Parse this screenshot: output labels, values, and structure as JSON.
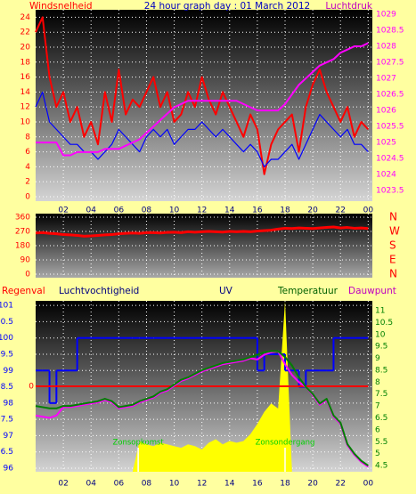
{
  "chart_data": [
    {
      "type": "line",
      "title": "24 hour graph day : 01 March 2012",
      "x": [
        0,
        0.5,
        1,
        1.5,
        2,
        2.5,
        3,
        3.5,
        4,
        4.5,
        5,
        5.5,
        6,
        6.5,
        7,
        7.5,
        8,
        8.5,
        9,
        9.5,
        10,
        10.5,
        11,
        11.5,
        12,
        12.5,
        13,
        13.5,
        14,
        14.5,
        15,
        15.5,
        16,
        16.5,
        17,
        17.5,
        18,
        18.5,
        19,
        19.5,
        20,
        20.5,
        21,
        21.5,
        22,
        22.5,
        23,
        23.5,
        24
      ],
      "xlim": [
        0,
        24.3
      ],
      "xticks": [
        {
          "value": 2,
          "label": "02"
        },
        {
          "value": 4,
          "label": "04"
        },
        {
          "value": 6,
          "label": "06"
        },
        {
          "value": 8,
          "label": "08"
        },
        10,
        12,
        14,
        16,
        18,
        20,
        22,
        {
          "value": 24,
          "label": "00"
        }
      ],
      "ylim": [
        -0.6,
        25
      ],
      "yticks": [
        0,
        2,
        4,
        6,
        8,
        10,
        12,
        14,
        16,
        18,
        20,
        22,
        24
      ],
      "y2lim": [
        1023.17,
        1029.14
      ],
      "y2ticks": [
        1023.5,
        1024,
        1024.5,
        1025,
        1025.5,
        1026,
        1026.5,
        1027,
        1027.5,
        1028,
        1028.5,
        1029
      ],
      "grid": true,
      "series": [
        {
          "name": "Windsnelheid",
          "color": "#ff0000",
          "values": [
            22,
            24,
            16,
            12,
            14,
            10,
            12,
            8,
            10,
            7,
            14,
            10,
            17,
            11,
            13,
            12,
            14,
            16,
            12,
            14,
            10,
            11,
            14,
            12,
            16,
            13,
            11,
            14,
            12,
            10,
            8,
            11,
            9,
            3,
            7,
            9,
            10,
            11,
            6,
            12,
            15,
            17,
            14,
            12,
            10,
            12,
            8,
            10,
            9
          ]
        },
        {
          "color": "#0000ff",
          "values": [
            12,
            14,
            10,
            9,
            8,
            7,
            7,
            6,
            6,
            5,
            6,
            7,
            9,
            8,
            7,
            6,
            8,
            9,
            8,
            9,
            7,
            8,
            9,
            9,
            10,
            9,
            8,
            9,
            8,
            7,
            6,
            7,
            6,
            4,
            5,
            5,
            6,
            7,
            5,
            7,
            9,
            11,
            10,
            9,
            8,
            9,
            7,
            7,
            6
          ]
        },
        {
          "name": "Luchtdruk",
          "color": "#ff00ff",
          "axis": "y2",
          "values": [
            1025,
            1025,
            1025,
            1025,
            1024.6,
            1024.6,
            1024.7,
            1024.7,
            1024.7,
            1024.7,
            1024.8,
            1024.8,
            1024.8,
            1024.9,
            1025,
            1025.1,
            1025.3,
            1025.5,
            1025.7,
            1025.9,
            1026.1,
            1026.2,
            1026.3,
            1026.3,
            1026.3,
            1026.3,
            1026.3,
            1026.3,
            1026.3,
            1026.3,
            1026.2,
            1026.1,
            1026,
            1026,
            1026,
            1026,
            1026.2,
            1026.5,
            1026.8,
            1027,
            1027.2,
            1027.4,
            1027.5,
            1027.6,
            1027.8,
            1027.9,
            1028,
            1028,
            1028.1
          ]
        }
      ]
    },
    {
      "type": "line",
      "x": [
        0,
        0.5,
        1,
        1.5,
        2,
        2.5,
        3,
        3.5,
        4,
        4.5,
        5,
        5.5,
        6,
        6.5,
        7,
        7.5,
        8,
        8.5,
        9,
        9.5,
        10,
        10.5,
        11,
        11.5,
        12,
        12.5,
        13,
        13.5,
        14,
        14.5,
        15,
        15.5,
        16,
        16.5,
        17,
        17.5,
        18,
        18.5,
        19,
        19.5,
        20,
        20.5,
        21,
        21.5,
        22,
        22.5,
        23,
        23.5,
        24
      ],
      "xlim": [
        0,
        24.3
      ],
      "xticks": [
        2,
        4,
        6,
        8,
        10,
        12,
        14,
        16,
        18,
        20,
        22,
        24
      ],
      "ylim": [
        -22.5,
        382.5
      ],
      "yticks": [
        0,
        90,
        180,
        270,
        360
      ],
      "y2lim": [
        -22.5,
        382.5
      ],
      "y2ticks": [
        {
          "value": 360,
          "label": "N"
        },
        {
          "value": 270,
          "label": "W"
        },
        {
          "value": 180,
          "label": "S"
        },
        {
          "value": 90,
          "label": "E"
        },
        {
          "value": 0,
          "label": "N"
        }
      ],
      "grid": true,
      "series": [
        {
          "color": "#ff0000",
          "values": [
            260,
            262,
            258,
            255,
            250,
            248,
            245,
            240,
            242,
            245,
            248,
            250,
            255,
            258,
            260,
            258,
            262,
            262,
            260,
            264,
            265,
            262,
            268,
            265,
            268,
            270,
            268,
            266,
            270,
            268,
            270,
            268,
            272,
            275,
            278,
            285,
            290,
            288,
            292,
            290,
            288,
            292,
            295,
            298,
            292,
            295,
            290,
            292,
            288
          ]
        }
      ]
    },
    {
      "type": "line",
      "x": [
        0,
        0.5,
        1,
        1.5,
        2,
        2.5,
        3,
        3.5,
        4,
        4.5,
        5,
        5.5,
        6,
        6.5,
        7,
        7.5,
        8,
        8.5,
        9,
        9.5,
        10,
        10.5,
        11,
        11.5,
        12,
        12.5,
        13,
        13.5,
        14,
        14.5,
        15,
        15.5,
        16,
        16.5,
        17,
        17.5,
        18,
        18.5,
        19,
        19.5,
        20,
        20.5,
        21,
        21.5,
        22,
        22.5,
        23,
        23.5,
        24
      ],
      "xlim": [
        0,
        24.3
      ],
      "xticks": [
        {
          "value": 2,
          "label": "02"
        },
        {
          "value": 4,
          "label": "04"
        },
        {
          "value": 6,
          "label": "06"
        },
        {
          "value": 8,
          "label": "08"
        },
        10,
        12,
        14,
        16,
        18,
        20,
        22,
        {
          "value": 24,
          "label": "00"
        }
      ],
      "ylim": [
        95.89,
        101.14
      ],
      "yticks": [
        96,
        96.5,
        97,
        97.5,
        98,
        98.5,
        99,
        99.5,
        100,
        100.5,
        101
      ],
      "y2lim": [
        4.24,
        11.41
      ],
      "y2ticks": [
        4.5,
        5,
        5.5,
        6,
        6.5,
        7,
        7.5,
        8,
        8.5,
        9,
        9.5,
        10,
        10.5,
        11
      ],
      "y3lim": [
        -1,
        1
      ],
      "y3ticks": [
        0
      ],
      "y4lim": [
        0,
        10
      ],
      "grid": true,
      "series": [
        {
          "name": "UV",
          "type": "area",
          "color": "#ffff00",
          "axis": "y4",
          "values": [
            0,
            0,
            0,
            0,
            0,
            0,
            0,
            0,
            0,
            0,
            0,
            0,
            0,
            0,
            0,
            1.8,
            1.6,
            1.5,
            1.7,
            1.6,
            1.5,
            1.4,
            1.6,
            1.5,
            1.3,
            1.7,
            1.9,
            1.6,
            1.8,
            1.7,
            1.8,
            2.2,
            2.8,
            3.5,
            4,
            3.7,
            10,
            0,
            0,
            0,
            0,
            0,
            0,
            0,
            0,
            0,
            0,
            0,
            0
          ]
        },
        {
          "name": "Luchtvochtigheid",
          "type": "step",
          "color": "#0000ff",
          "values": [
            99,
            99,
            98,
            99,
            99,
            99,
            100,
            100,
            100,
            100,
            100,
            100,
            100,
            100,
            100,
            100,
            100,
            100,
            100,
            100,
            100,
            100,
            100,
            100,
            100,
            100,
            100,
            100,
            100,
            100,
            100,
            100,
            99,
            99.5,
            99.5,
            99.5,
            99,
            99,
            98.5,
            99,
            99,
            99,
            99,
            100,
            100,
            100,
            100,
            100,
            100
          ]
        },
        {
          "name": "Regenval",
          "color": "#ff0000",
          "axis": "y3",
          "values": [
            0,
            0,
            0,
            0,
            0,
            0,
            0,
            0,
            0,
            0,
            0,
            0,
            0,
            0,
            0,
            0,
            0,
            0,
            0,
            0,
            0,
            0,
            0,
            0,
            0,
            0,
            0,
            0,
            0,
            0,
            0,
            0,
            0,
            0,
            0,
            0,
            0,
            0,
            0,
            0,
            0,
            0,
            0,
            0,
            0,
            0,
            0,
            0,
            0
          ]
        },
        {
          "name": "Dauwpunt",
          "color": "#ff00ff",
          "axis": "y2",
          "values": [
            6.6,
            6.55,
            6.5,
            6.6,
            6.95,
            6.95,
            7,
            7.05,
            7.1,
            7.15,
            7.25,
            7.15,
            6.9,
            6.95,
            7,
            7.15,
            7.25,
            7.35,
            7.55,
            7.65,
            7.85,
            8.05,
            8.15,
            8.3,
            8.45,
            8.55,
            8.65,
            8.75,
            8.8,
            8.85,
            8.9,
            9,
            8.95,
            9.15,
            9.25,
            9.3,
            8.75,
            8.3,
            8,
            7.8,
            7.45,
            7.05,
            7.25,
            6.55,
            6.25,
            5.35,
            4.95,
            4.65,
            4.45
          ]
        },
        {
          "name": "Temperatuur",
          "color": "#008000",
          "axis": "y2",
          "values": [
            7,
            6.95,
            6.9,
            6.9,
            7,
            7,
            7.05,
            7.1,
            7.15,
            7.2,
            7.3,
            7.2,
            6.95,
            7,
            7.05,
            7.2,
            7.3,
            7.4,
            7.6,
            7.7,
            7.9,
            8.1,
            8.2,
            8.35,
            8.5,
            8.6,
            8.7,
            8.8,
            8.85,
            8.9,
            8.95,
            9.05,
            9.15,
            9.25,
            9.3,
            9.3,
            9.05,
            8.7,
            8.2,
            7.8,
            7.5,
            7.1,
            7.3,
            6.6,
            6.3,
            5.4,
            5,
            4.7,
            4.5
          ]
        }
      ],
      "annotations": [
        {
          "text": "Zonsopkomst",
          "x": 7.4
        },
        {
          "text": "Zonsondergang",
          "x": 18
        }
      ]
    }
  ]
}
